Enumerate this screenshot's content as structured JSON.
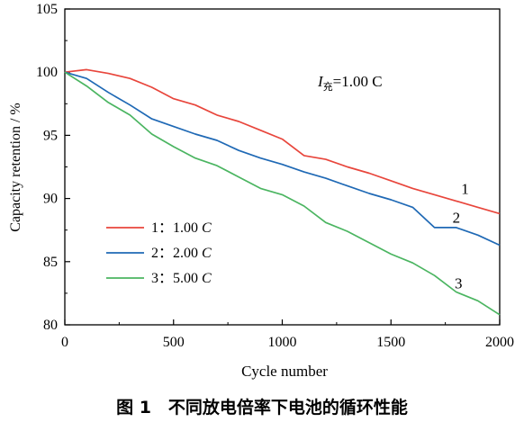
{
  "chart_data": {
    "type": "line",
    "xlabel": "Cycle number",
    "ylabel": "Capacity retention / %",
    "xlim": [
      0,
      2000
    ],
    "ylim": [
      80,
      105
    ],
    "xticks": [
      0,
      500,
      1000,
      1500,
      2000
    ],
    "yticks": [
      80,
      85,
      90,
      95,
      100,
      105
    ],
    "grid": false,
    "legend_position": "bottom-left",
    "annotation": {
      "main": "I",
      "subscript": "充",
      "rest": "=1.00 C"
    },
    "series": [
      {
        "name": "1：1.00 C",
        "legend_prefix": "1：1.00 ",
        "legend_italic": "C",
        "end_label": "1",
        "color": "#e8463c",
        "x": [
          0,
          100,
          200,
          300,
          400,
          500,
          600,
          700,
          800,
          900,
          1000,
          1100,
          1200,
          1300,
          1400,
          1500,
          1600,
          1700,
          1800,
          1900,
          2000
        ],
        "y": [
          100,
          100.2,
          99.9,
          99.5,
          98.8,
          97.9,
          97.4,
          96.6,
          96.1,
          95.4,
          94.7,
          93.4,
          93.1,
          92.5,
          92.0,
          91.4,
          90.8,
          90.3,
          89.8,
          89.3,
          88.8
        ]
      },
      {
        "name": "2：2.00 C",
        "legend_prefix": "2：2.00 ",
        "legend_italic": "C",
        "end_label": "2",
        "color": "#1f69b5",
        "x": [
          0,
          100,
          200,
          300,
          400,
          500,
          600,
          700,
          800,
          900,
          1000,
          1100,
          1200,
          1300,
          1400,
          1500,
          1600,
          1700,
          1800,
          1900,
          2000
        ],
        "y": [
          100,
          99.5,
          98.4,
          97.4,
          96.3,
          95.7,
          95.1,
          94.6,
          93.8,
          93.2,
          92.7,
          92.1,
          91.6,
          91.0,
          90.4,
          89.9,
          89.3,
          87.7,
          87.7,
          87.1,
          86.3
        ]
      },
      {
        "name": "3：5.00 C",
        "legend_prefix": "3：5.00 ",
        "legend_italic": "C",
        "end_label": "3",
        "color": "#4bb561",
        "x": [
          0,
          100,
          200,
          300,
          400,
          500,
          600,
          700,
          800,
          900,
          1000,
          1100,
          1200,
          1300,
          1400,
          1500,
          1600,
          1700,
          1800,
          1900,
          2000
        ],
        "y": [
          100,
          98.9,
          97.6,
          96.6,
          95.1,
          94.1,
          93.2,
          92.6,
          91.7,
          90.8,
          90.3,
          89.4,
          88.1,
          87.4,
          86.5,
          85.6,
          84.9,
          83.9,
          82.6,
          81.9,
          80.8
        ]
      }
    ]
  },
  "caption": "图 1　不同放电倍率下电池的循环性能"
}
